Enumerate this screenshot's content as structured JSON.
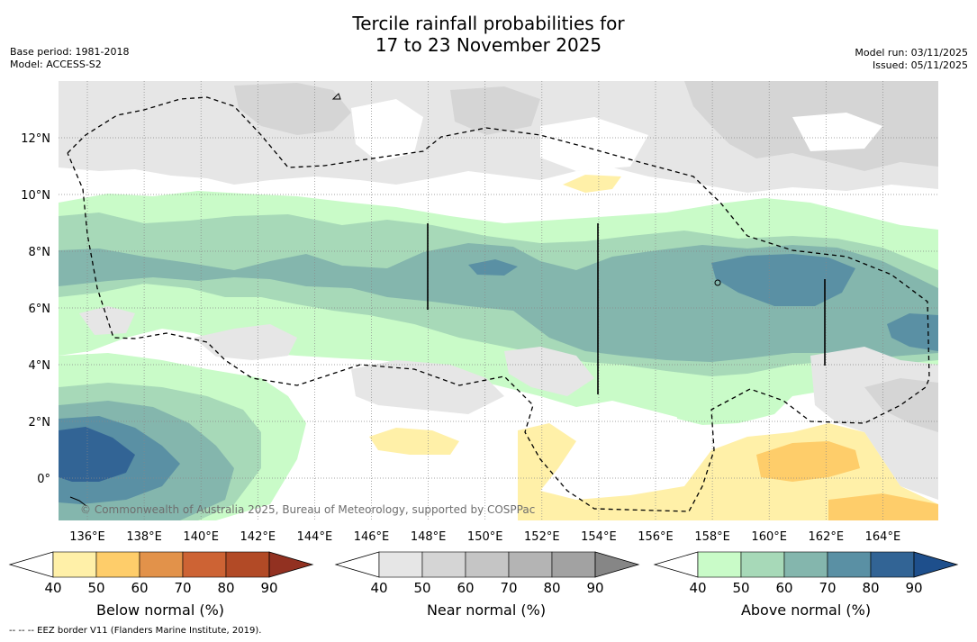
{
  "title": {
    "line1": "Tercile rainfall probabilities for",
    "line2": "17 to 23 November 2025"
  },
  "meta_left": {
    "base_period": "Base period: 1981-2018",
    "model": "Model: ACCESS-S2"
  },
  "meta_right": {
    "model_run": "Model run: 03/11/2025",
    "issued": "Issued: 05/11/2025"
  },
  "map": {
    "lon_labels": [
      "136°E",
      "138°E",
      "140°E",
      "142°E",
      "144°E",
      "146°E",
      "148°E",
      "150°E",
      "152°E",
      "154°E",
      "156°E",
      "158°E",
      "160°E",
      "162°E",
      "164°E"
    ],
    "lat_labels": [
      "12°N",
      "10°N",
      "8°N",
      "6°N",
      "4°N",
      "2°N",
      "0°"
    ],
    "copyright": "© Commonwealth of Australia 2025, Bureau of Meteorology, supported by COSPPac"
  },
  "colorbars": [
    {
      "id": "below",
      "label": "Below normal (%)",
      "ticks": [
        "40",
        "50",
        "60",
        "70",
        "80",
        "90"
      ],
      "colors": [
        "#ffffff",
        "#fff0a8",
        "#fecd6a",
        "#e2924a",
        "#cd6334",
        "#b24a26",
        "#923121"
      ]
    },
    {
      "id": "near",
      "label": "Near normal (%)",
      "ticks": [
        "40",
        "50",
        "60",
        "70",
        "80",
        "90"
      ],
      "colors": [
        "#ffffff",
        "#e6e6e6",
        "#d5d5d5",
        "#c5c5c5",
        "#b4b4b4",
        "#a2a2a2",
        "#868686"
      ]
    },
    {
      "id": "above",
      "label": "Above normal (%)",
      "ticks": [
        "40",
        "50",
        "60",
        "70",
        "80",
        "90"
      ],
      "colors": [
        "#ffffff",
        "#c9fbc8",
        "#a7d9b8",
        "#84b6ad",
        "#5a90a4",
        "#326495",
        "#1e4f8c"
      ]
    }
  ],
  "footer": "--  --  -- EEZ border V11 (Flanders Marine Institute, 2019)."
}
